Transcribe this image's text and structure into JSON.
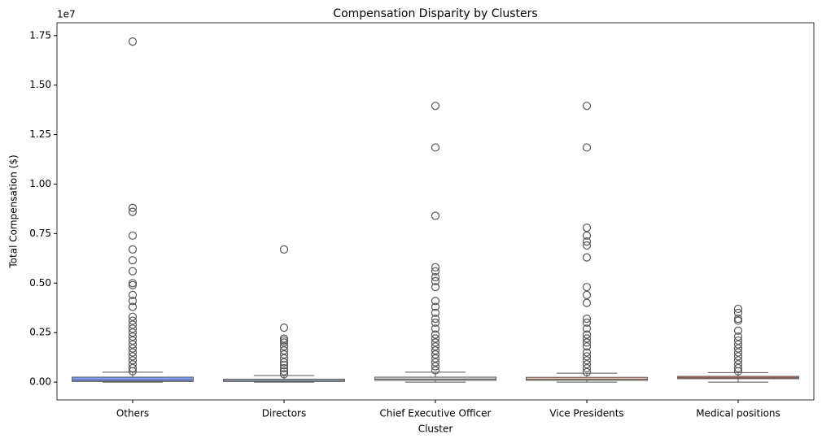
{
  "chart_data": {
    "type": "box",
    "title": "Compensation Disparity by Clusters",
    "x_label": "Cluster",
    "y_label": "Total Compensation ($)",
    "y_offset_label": "1e7",
    "categories": [
      "Others",
      "Directors",
      "Chief Executive Officer",
      "Vice Presidents",
      "Medical positions"
    ],
    "colors": [
      "#7b9ff9",
      "#c0d4f5",
      "#dddcdc",
      "#f4c6af",
      "#ee8468"
    ],
    "boxes": [
      {
        "low": 0,
        "q1": 30000,
        "median": 100000,
        "q3": 250000,
        "high": 500000,
        "outliers": [
          17200000,
          8800000,
          8600000,
          7400000,
          6700000,
          6150000,
          5600000,
          5000000,
          4900000,
          4400000,
          4100000,
          3800000,
          3300000,
          3100000,
          2900000,
          2700000,
          2500000,
          2300000,
          2100000,
          1900000,
          1700000,
          1500000,
          1300000,
          1100000,
          900000,
          700000,
          550000
        ]
      },
      {
        "low": 0,
        "q1": 30000,
        "median": 80000,
        "q3": 150000,
        "high": 330000,
        "outliers": [
          6700000,
          2750000,
          2200000,
          2100000,
          2000000,
          1800000,
          1600000,
          1400000,
          1200000,
          1000000,
          850000,
          700000,
          550000,
          400000
        ]
      },
      {
        "low": 0,
        "q1": 90000,
        "median": 150000,
        "q3": 250000,
        "high": 500000,
        "outliers": [
          13950000,
          11850000,
          8400000,
          5800000,
          5600000,
          5300000,
          5100000,
          4800000,
          4100000,
          3800000,
          3500000,
          3200000,
          3000000,
          2700000,
          2400000,
          2200000,
          2000000,
          1800000,
          1600000,
          1400000,
          1200000,
          1000000,
          800000,
          600000
        ]
      },
      {
        "low": 0,
        "q1": 90000,
        "median": 140000,
        "q3": 240000,
        "high": 450000,
        "outliers": [
          13950000,
          11850000,
          7800000,
          7400000,
          7100000,
          6900000,
          6300000,
          4800000,
          4400000,
          4000000,
          3200000,
          3000000,
          2700000,
          2400000,
          2200000,
          2000000,
          1800000,
          1500000,
          1300000,
          1100000,
          900000,
          700000,
          500000
        ]
      },
      {
        "low": 0,
        "q1": 170000,
        "median": 220000,
        "q3": 290000,
        "high": 480000,
        "outliers": [
          3700000,
          3500000,
          3200000,
          3100000,
          2600000,
          2300000,
          2100000,
          1900000,
          1700000,
          1500000,
          1300000,
          1100000,
          900000,
          700000,
          550000
        ]
      }
    ],
    "ylim": [
      -900000,
      18150000
    ],
    "yticks": [
      {
        "value": 0,
        "label": "0.00"
      },
      {
        "value": 2500000,
        "label": "0.25"
      },
      {
        "value": 5000000,
        "label": "0.50"
      },
      {
        "value": 7500000,
        "label": "0.75"
      },
      {
        "value": 10000000,
        "label": "1.00"
      },
      {
        "value": 12500000,
        "label": "1.25"
      },
      {
        "value": 15000000,
        "label": "1.50"
      },
      {
        "value": 17500000,
        "label": "1.75"
      }
    ],
    "grid": false
  }
}
